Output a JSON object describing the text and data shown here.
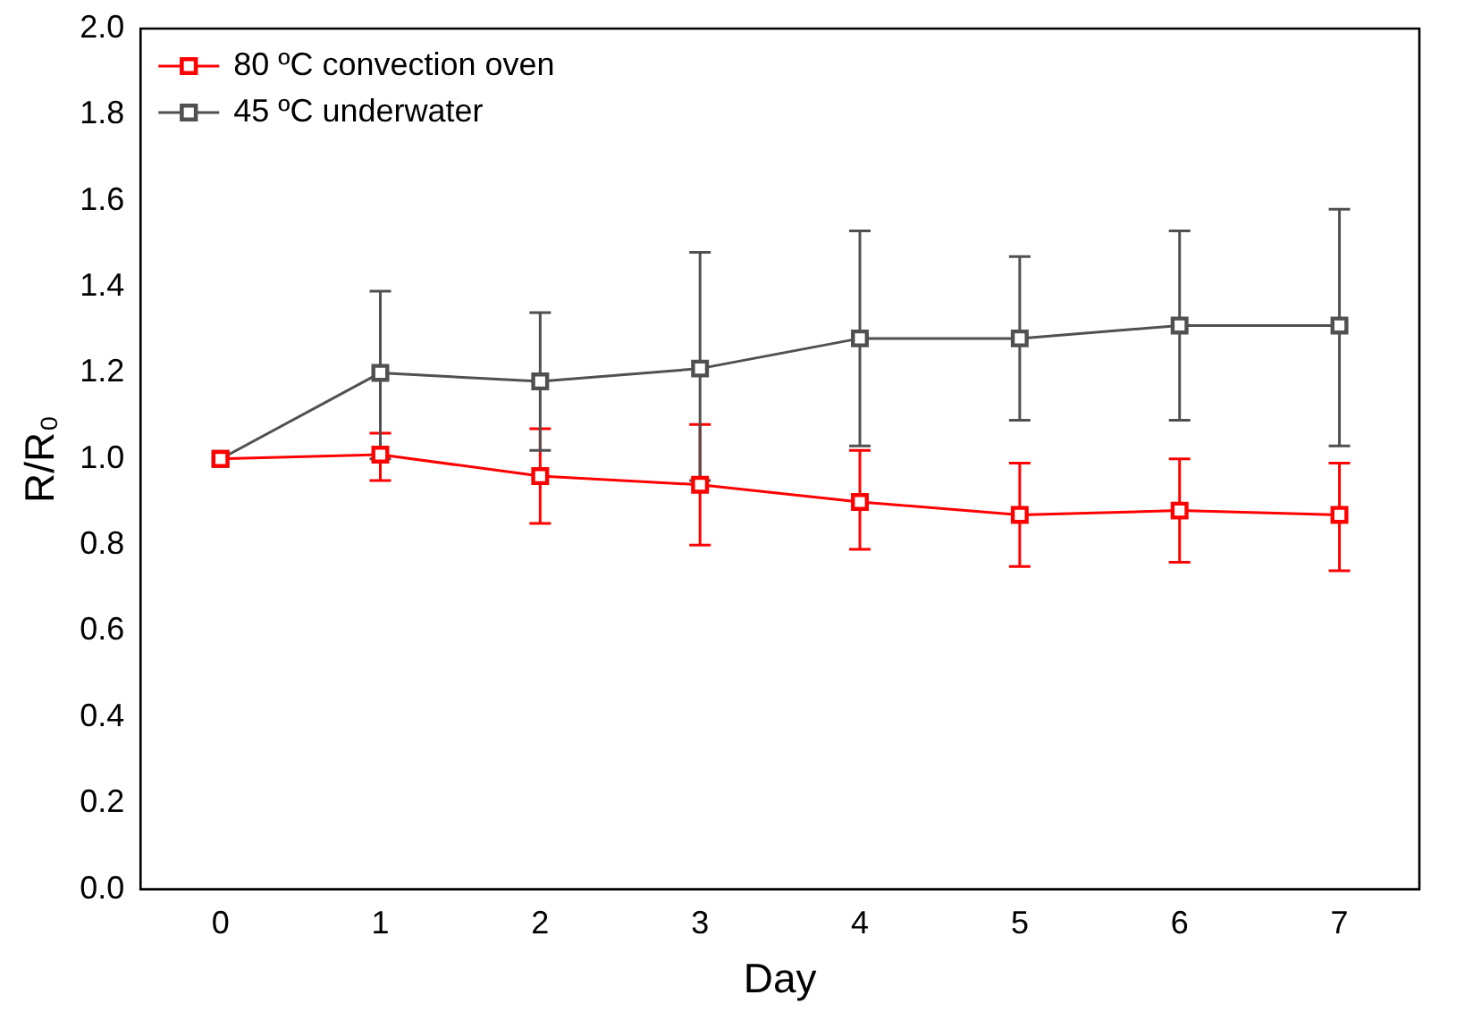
{
  "chart_data": {
    "type": "line",
    "xlabel": "Day",
    "ylabel": "R/R₀",
    "x": [
      0,
      1,
      2,
      3,
      4,
      5,
      6,
      7
    ],
    "xlim": [
      -0.5,
      7.5
    ],
    "xticks": [
      0,
      1,
      2,
      3,
      4,
      5,
      6,
      7
    ],
    "ylim": [
      0,
      2
    ],
    "yticks": [
      {
        "value": 0,
        "label": "0.0"
      },
      {
        "value": 0.2,
        "label": "0.2"
      },
      {
        "value": 0.4,
        "label": "0.4"
      },
      {
        "value": 0.6,
        "label": "0.6"
      },
      {
        "value": 0.8,
        "label": "0.8"
      },
      {
        "value": 1,
        "label": "1.0"
      },
      {
        "value": 1.2,
        "label": "1.2"
      },
      {
        "value": 1.4,
        "label": "1.4"
      },
      {
        "value": 1.6,
        "label": "1.6"
      },
      {
        "value": 1.8,
        "label": "1.8"
      },
      {
        "value": 2,
        "label": "2.0"
      }
    ],
    "series": [
      {
        "name": "80 ºC convection oven",
        "color": "#ff0000",
        "values": [
          1.0,
          1.01,
          0.96,
          0.94,
          0.9,
          0.87,
          0.88,
          0.87
        ],
        "errors": [
          null,
          [
            0.95,
            1.06
          ],
          [
            0.85,
            1.07
          ],
          [
            0.8,
            1.08
          ],
          [
            0.79,
            1.02
          ],
          [
            0.75,
            0.99
          ],
          [
            0.76,
            1.0
          ],
          [
            0.74,
            0.99
          ]
        ]
      },
      {
        "name": "45 ºC underwater",
        "color": "#505050",
        "values": [
          1.0,
          1.2,
          1.18,
          1.21,
          1.28,
          1.28,
          1.31,
          1.31
        ],
        "errors": [
          null,
          [
            1.0,
            1.39
          ],
          [
            1.02,
            1.34
          ],
          [
            0.95,
            1.48
          ],
          [
            1.03,
            1.53
          ],
          [
            1.09,
            1.47
          ],
          [
            1.09,
            1.53
          ],
          [
            1.03,
            1.58
          ]
        ]
      }
    ],
    "marker": "square",
    "line_style": "solid",
    "legend": "top left",
    "grid": false
  }
}
